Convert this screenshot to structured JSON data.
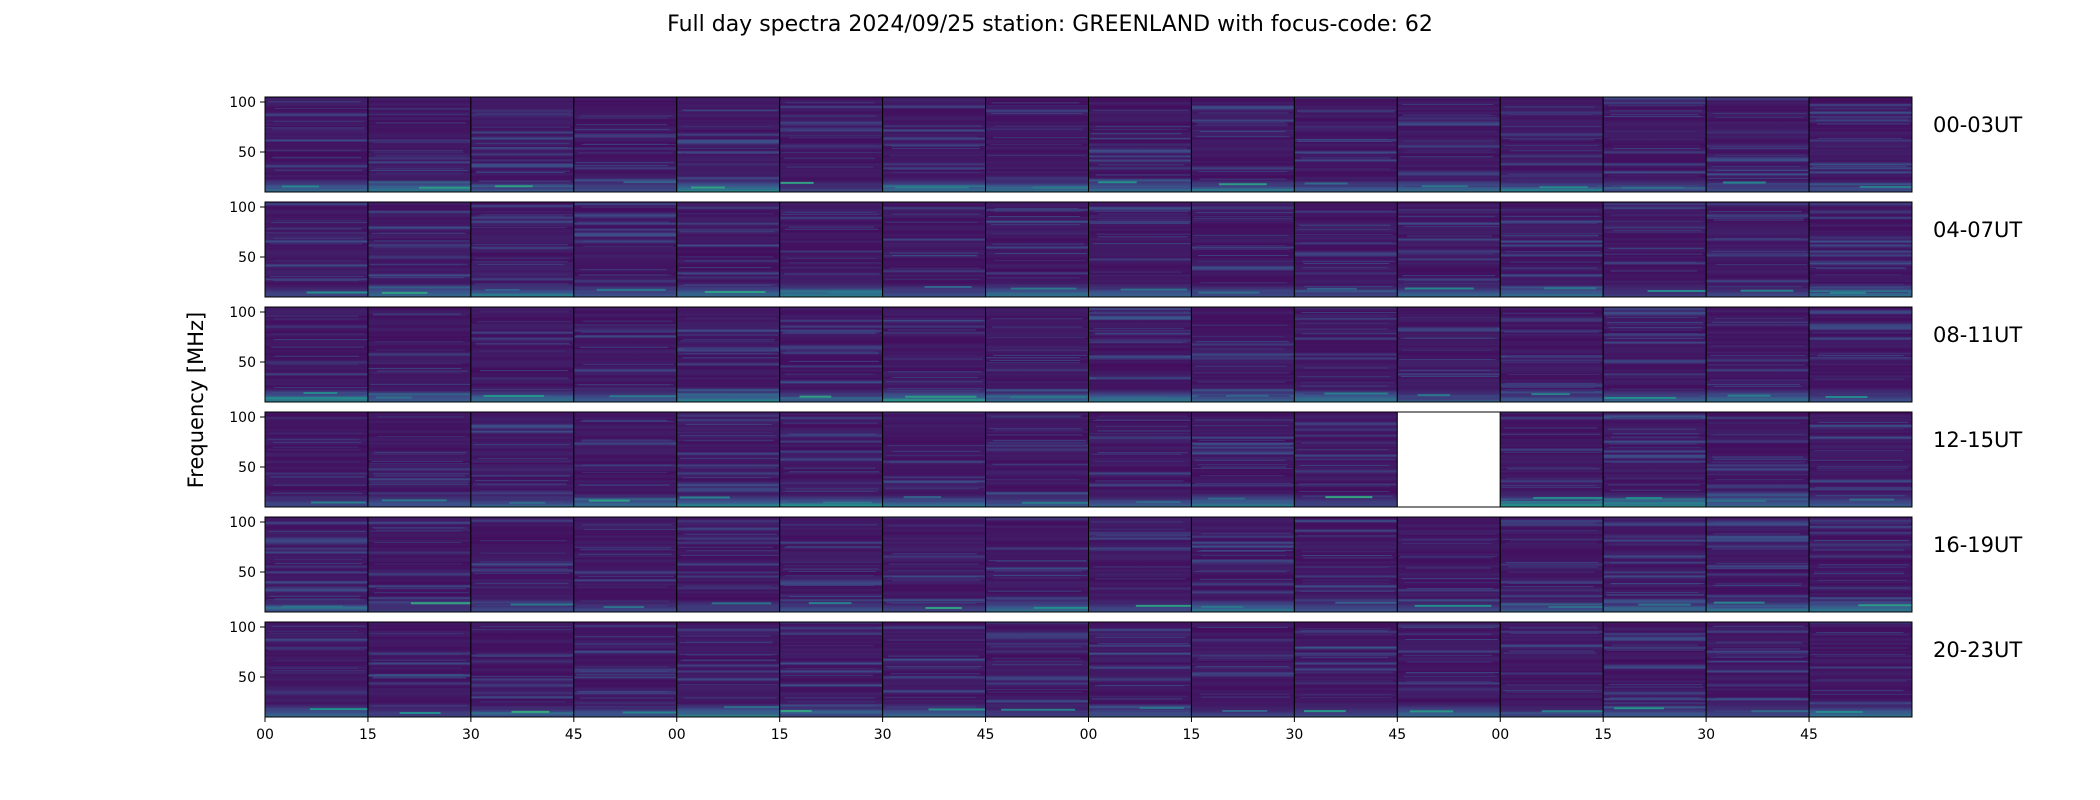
{
  "chart_data": {
    "type": "heatmap",
    "title": "Full day spectra 2024/09/25 station: GREENLAND with focus-code: 62",
    "ylabel": "Frequency [MHz]",
    "xlabel": "",
    "y_ticks": [
      50,
      100
    ],
    "ylim": [
      10,
      105
    ],
    "x_tick_labels": [
      "00",
      "15",
      "30",
      "45",
      "00",
      "15",
      "30",
      "45",
      "00",
      "15",
      "30",
      "45",
      "00",
      "15",
      "30",
      "45"
    ],
    "panels_per_row": 16,
    "rows": [
      {
        "label": "00-03UT",
        "missing_panels": []
      },
      {
        "label": "04-07UT",
        "missing_panels": []
      },
      {
        "label": "08-11UT",
        "missing_panels": []
      },
      {
        "label": "12-15UT",
        "missing_panels": [
          11
        ]
      },
      {
        "label": "16-19UT",
        "missing_panels": []
      },
      {
        "label": "20-23UT",
        "missing_panels": []
      }
    ],
    "colormap": [
      "#440154",
      "#3b528b",
      "#21918c",
      "#5ec962",
      "#fde725"
    ],
    "background_color": "#45175f"
  }
}
